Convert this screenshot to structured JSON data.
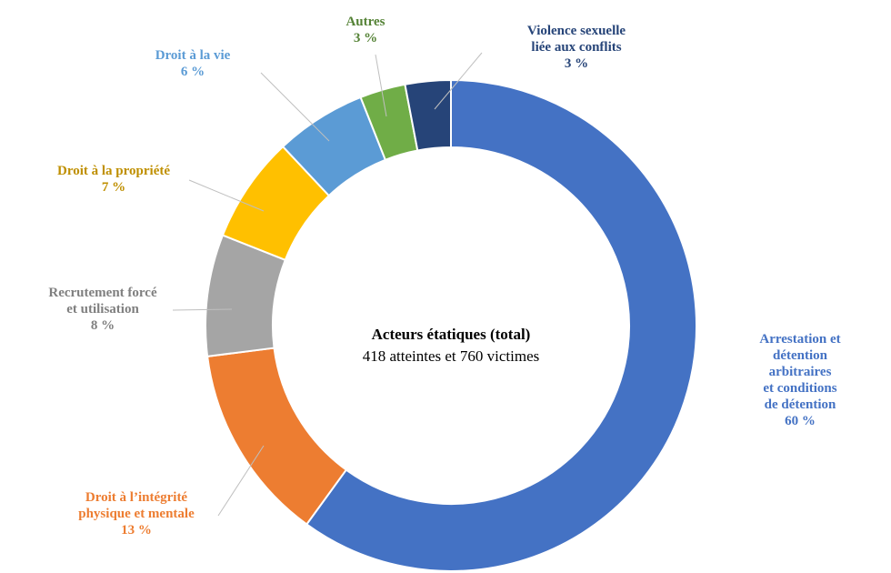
{
  "chart_data": {
    "type": "donut",
    "center_title": "Acteurs étatiques (total)",
    "center_subtitle": "418 atteintes et 760 victimes",
    "categories": [
      "Arrestation et\ndétention arbitraires\net conditions\nde détention",
      "Droit à l’intégrité\nphysique et mentale",
      "Recrutement forcé\net utilisation",
      "Droit à la propriété",
      "Droit à la vie",
      "Autres",
      "Violence sexuelle\nliée aux conflits"
    ],
    "values": [
      60,
      13,
      8,
      7,
      6,
      3,
      3
    ],
    "value_labels": [
      "60 %",
      "13 %",
      "8 %",
      "7 %",
      "6 %",
      "3 %",
      "3 %"
    ],
    "colors": [
      "#4472c4",
      "#ed7d31",
      "#a5a5a5",
      "#ffc000",
      "#5b9bd5",
      "#70ad47",
      "#264478"
    ],
    "label_colors": [
      "#4472c4",
      "#ed7d31",
      "#7f7f7f",
      "#bf8f00",
      "#5b9bd5",
      "#548235",
      "#264478"
    ]
  }
}
